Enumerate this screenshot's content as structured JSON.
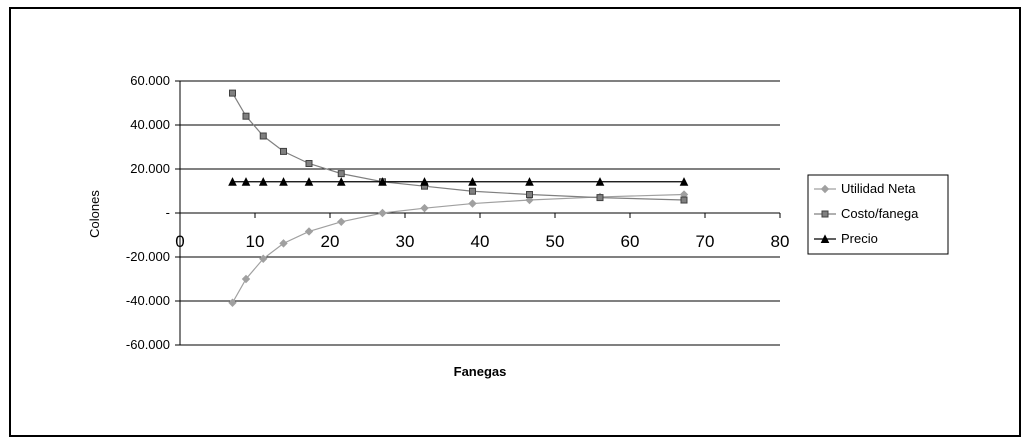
{
  "chart_data": {
    "type": "line",
    "title": "",
    "xlabel": "Fanegas",
    "ylabel": "Colones",
    "xlim": [
      0,
      80
    ],
    "ylim": [
      -60000,
      60000
    ],
    "xticks": [
      "0",
      "10",
      "20",
      "30",
      "40",
      "50",
      "60",
      "70",
      "80"
    ],
    "yticks": [
      "60.000",
      "40.000",
      "20.000",
      "-",
      "-20.000",
      "-40.000",
      "-60.000"
    ],
    "grid": "horizontal",
    "legend_position": "right",
    "colors": {
      "utilidad": "#a0a0a0",
      "costo": "#808080",
      "precio": "#000000"
    },
    "series": [
      {
        "name": "Utilidad Neta",
        "marker": "diamond",
        "x": [
          7,
          8.8,
          11.1,
          13.8,
          17.2,
          21.5,
          27,
          32.6,
          39,
          46.6,
          56,
          67.2
        ],
        "y": [
          -40800,
          -30000,
          -20800,
          -13800,
          -8400,
          -4000,
          0,
          2200,
          4300,
          5900,
          7300,
          8400
        ]
      },
      {
        "name": "Costo/fanega",
        "marker": "square",
        "x": [
          7,
          8.8,
          11.1,
          13.8,
          17.2,
          21.5,
          27,
          32.6,
          39,
          46.6,
          56,
          67.2
        ],
        "y": [
          54500,
          44000,
          35000,
          28000,
          22500,
          17900,
          14200,
          12200,
          9900,
          8400,
          7000,
          5900
        ]
      },
      {
        "name": "Precio",
        "marker": "triangle",
        "x": [
          7,
          8.8,
          11.1,
          13.8,
          17.2,
          21.5,
          27,
          32.6,
          39,
          46.6,
          56,
          67.2
        ],
        "y": [
          14200,
          14200,
          14200,
          14200,
          14200,
          14200,
          14200,
          14200,
          14200,
          14200,
          14200,
          14200
        ]
      }
    ]
  }
}
